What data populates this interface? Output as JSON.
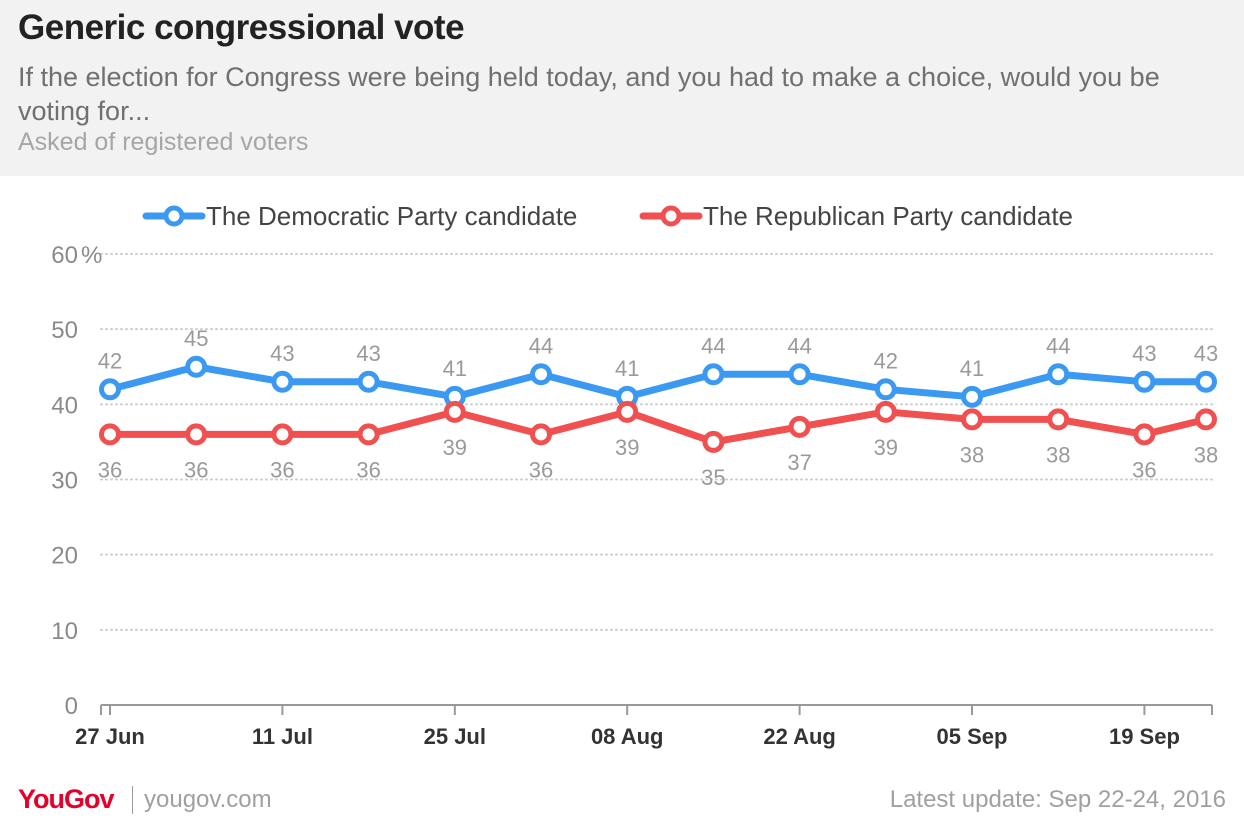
{
  "header": {
    "title": "Generic congressional vote",
    "subtitle": "If the election for Congress were being held today, and you had to make a choice, would you be voting for...",
    "note": "Asked of registered voters"
  },
  "footer": {
    "logo": "YouGov",
    "site": "yougov.com",
    "update": "Latest update: Sep 22-24, 2016"
  },
  "colors": {
    "democratic": "#3b99f2",
    "republican": "#f05050",
    "grid": "#cccccc",
    "axis_text": "#8a8a8a",
    "label_text": "#9a9a9a"
  },
  "chart_data": {
    "type": "line",
    "x": [
      "2016-06-27",
      "2016-07-04",
      "2016-07-11",
      "2016-07-18",
      "2016-07-25",
      "2016-08-01",
      "2016-08-08",
      "2016-08-15",
      "2016-08-22",
      "2016-08-29",
      "2016-09-05",
      "2016-09-12",
      "2016-09-19",
      "2016-09-24"
    ],
    "series": [
      {
        "name": "The Democratic Party candidate",
        "values": [
          42,
          45,
          43,
          43,
          41,
          44,
          41,
          44,
          44,
          42,
          41,
          44,
          43,
          43
        ]
      },
      {
        "name": "The Republican Party candidate",
        "values": [
          36,
          36,
          36,
          36,
          39,
          36,
          39,
          35,
          37,
          39,
          38,
          38,
          36,
          38
        ]
      }
    ],
    "x_tick_labels": [
      "27 Jun",
      "11 Jul",
      "25 Jul",
      "08 Aug",
      "22 Aug",
      "05 Sep",
      "19 Sep"
    ],
    "x_tick_dates": [
      "2016-06-27",
      "2016-07-11",
      "2016-07-25",
      "2016-08-08",
      "2016-08-22",
      "2016-09-05",
      "2016-09-19"
    ],
    "x_range": [
      "2016-06-27",
      "2016-09-24"
    ],
    "y_ticks": [
      0,
      10,
      20,
      30,
      40,
      50,
      60
    ],
    "y_unit": "%",
    "ylim": [
      0,
      60
    ],
    "grid": "horizontal dotted",
    "legend_position": "top-center"
  }
}
